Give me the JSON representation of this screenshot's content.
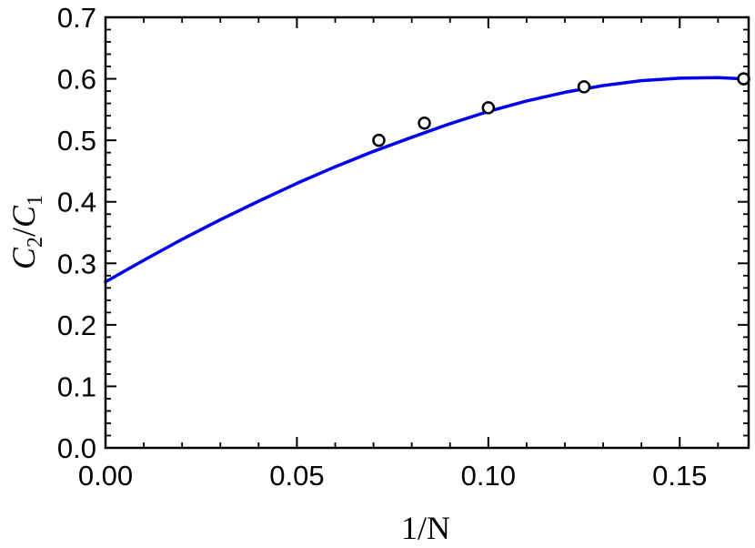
{
  "chart_data": {
    "type": "line",
    "xlabel": "1/N",
    "ylabel": {
      "c2_letter": "C",
      "c2_sub": "2",
      "slash": "/",
      "c1_letter": "C",
      "c1_sub": "1"
    },
    "xlim": [
      0.0,
      0.168
    ],
    "ylim": [
      0.0,
      0.7
    ],
    "x_ticks": [
      0.0,
      0.05,
      0.1,
      0.15
    ],
    "x_tick_labels": [
      "0.00",
      "0.05",
      "0.10",
      "0.15"
    ],
    "x_minor_step": 0.01,
    "y_ticks": [
      0.0,
      0.1,
      0.2,
      0.3,
      0.4,
      0.5,
      0.6,
      0.7
    ],
    "y_tick_labels": [
      "0.0",
      "0.1",
      "0.2",
      "0.3",
      "0.4",
      "0.5",
      "0.6",
      "0.7"
    ],
    "y_minor_step": 0.02,
    "grid": false,
    "colors": {
      "fit_line": "#0000ee",
      "marker_face": "#ffffff",
      "marker_edge": "#000000",
      "axes": "#000000"
    },
    "series": [
      {
        "kind": "fit",
        "x": [
          0.0,
          0.01,
          0.02,
          0.03,
          0.04,
          0.05,
          0.06,
          0.07,
          0.08,
          0.09,
          0.1,
          0.11,
          0.12,
          0.13,
          0.14,
          0.15,
          0.16,
          0.1667
        ],
        "y": [
          0.27,
          0.305,
          0.339,
          0.371,
          0.401,
          0.43,
          0.457,
          0.482,
          0.505,
          0.527,
          0.547,
          0.564,
          0.578,
          0.589,
          0.597,
          0.601,
          0.602,
          0.6
        ]
      },
      {
        "kind": "points",
        "x": [
          0.0714,
          0.0833,
          0.1,
          0.125,
          0.1667
        ],
        "y": [
          0.5,
          0.528,
          0.553,
          0.587,
          0.6
        ]
      }
    ]
  }
}
